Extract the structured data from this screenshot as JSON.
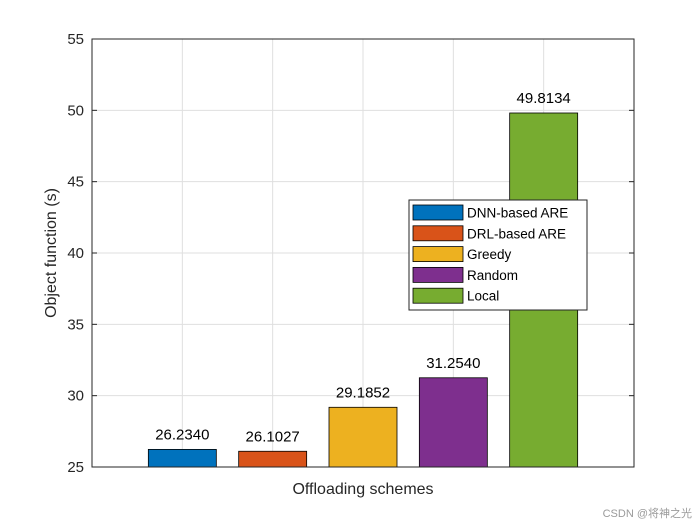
{
  "chart_data": {
    "type": "bar",
    "categories": [
      "DNN-based ARE",
      "DRL-based ARE",
      "Greedy",
      "Random",
      "Local"
    ],
    "values": [
      26.234,
      26.1027,
      29.1852,
      31.254,
      49.8134
    ],
    "data_labels": [
      "26.2340",
      "26.1027",
      "29.1852",
      "31.2540",
      "49.8134"
    ],
    "colors": [
      "#0072BD",
      "#D95319",
      "#EDB120",
      "#7E2F8E",
      "#77AC30"
    ],
    "title": "",
    "xlabel": "Offloading schemes",
    "ylabel": "Object function (s)",
    "ylim": [
      25,
      55
    ],
    "yticks": [
      25,
      30,
      35,
      40,
      45,
      50,
      55
    ],
    "grid": true,
    "legend": {
      "placement": "center-right",
      "entries": [
        "DNN-based ARE",
        "DRL-based ARE",
        "Greedy",
        "Random",
        "Local"
      ]
    }
  },
  "watermark": "CSDN @将神之光"
}
